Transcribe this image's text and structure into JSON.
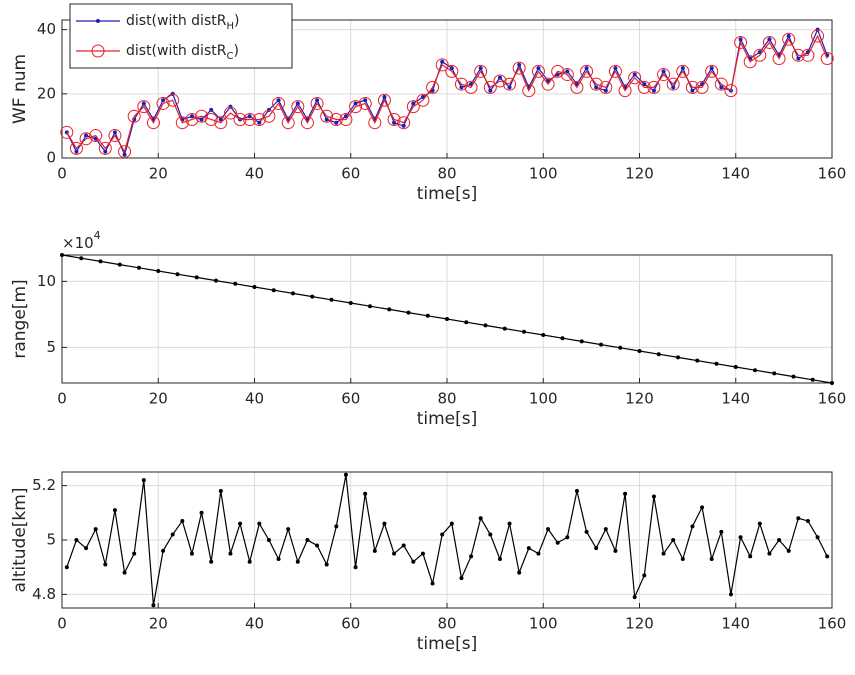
{
  "chart_data": [
    {
      "type": "line",
      "ylabel": "WF num",
      "xlabel": "time[s]",
      "xlim": [
        0,
        160
      ],
      "xticks": [
        0,
        20,
        40,
        60,
        80,
        100,
        120,
        140,
        160
      ],
      "ylim": [
        0,
        43
      ],
      "yticks": [
        0,
        20,
        40
      ],
      "grid": true,
      "legend": "upper left",
      "x": [
        1,
        3,
        5,
        7,
        9,
        11,
        13,
        15,
        17,
        19,
        21,
        23,
        25,
        27,
        29,
        31,
        33,
        35,
        37,
        39,
        41,
        43,
        45,
        47,
        49,
        51,
        53,
        55,
        57,
        59,
        61,
        63,
        65,
        67,
        69,
        71,
        73,
        75,
        77,
        79,
        81,
        83,
        85,
        87,
        89,
        91,
        93,
        95,
        97,
        99,
        101,
        103,
        105,
        107,
        109,
        111,
        113,
        115,
        117,
        119,
        121,
        123,
        125,
        127,
        129,
        131,
        133,
        135,
        137,
        139,
        141,
        143,
        145,
        147,
        149,
        151,
        153,
        155,
        157,
        159
      ],
      "series": [
        {
          "name": "dist(with distR",
          "name_sub": "H",
          "name_end": ")",
          "color": "#1f1fb4",
          "marker": "dot",
          "values": [
            8,
            2,
            7,
            6,
            2,
            8,
            1,
            12,
            17,
            12,
            18,
            20,
            12,
            13,
            12,
            15,
            12,
            16,
            12,
            13,
            11,
            15,
            18,
            12,
            17,
            12,
            18,
            12,
            11,
            13,
            17,
            18,
            12,
            19,
            11,
            10,
            17,
            19,
            21,
            30,
            28,
            22,
            23,
            28,
            21,
            25,
            22,
            29,
            22,
            28,
            24,
            26,
            27,
            23,
            28,
            22,
            21,
            28,
            22,
            26,
            23,
            21,
            27,
            22,
            28,
            21,
            23,
            28,
            22,
            21,
            37,
            31,
            33,
            37,
            32,
            38,
            31,
            33,
            40,
            32
          ]
        },
        {
          "name": "dist(with distR",
          "name_sub": "C",
          "name_end": ")",
          "color": "#e8202a",
          "marker": "circle",
          "values": [
            8,
            3,
            6,
            7,
            3,
            7,
            2,
            13,
            16,
            11,
            17,
            18,
            11,
            12,
            13,
            12,
            11,
            14,
            12,
            12,
            12,
            13,
            17,
            11,
            16,
            11,
            17,
            13,
            12,
            12,
            16,
            17,
            11,
            18,
            12,
            11,
            16,
            18,
            22,
            29,
            27,
            23,
            22,
            27,
            22,
            24,
            23,
            28,
            21,
            27,
            23,
            27,
            26,
            22,
            27,
            23,
            22,
            27,
            21,
            25,
            22,
            22,
            26,
            23,
            27,
            22,
            22,
            27,
            23,
            21,
            36,
            30,
            32,
            36,
            31,
            37,
            32,
            32,
            38,
            31
          ]
        }
      ]
    },
    {
      "type": "line",
      "ylabel": "range[m]",
      "xlabel": "time[s]",
      "exponent_base": "×10",
      "exponent": "4",
      "xlim": [
        0,
        160
      ],
      "xticks": [
        0,
        20,
        40,
        60,
        80,
        100,
        120,
        140,
        160
      ],
      "ylim": [
        23000,
        120000
      ],
      "yticks": [
        {
          "value": 50000,
          "label": "5"
        },
        {
          "value": 100000,
          "label": "10"
        }
      ],
      "grid": true,
      "x": [
        0,
        4,
        8,
        12,
        16,
        20,
        24,
        28,
        32,
        36,
        40,
        44,
        48,
        52,
        56,
        60,
        64,
        68,
        72,
        76,
        80,
        84,
        88,
        92,
        96,
        100,
        104,
        108,
        112,
        116,
        120,
        124,
        128,
        132,
        136,
        140,
        144,
        148,
        152,
        156,
        160
      ],
      "series": [
        {
          "color": "#000000",
          "marker": "dot",
          "values": [
            120000,
            117575,
            115150,
            112725,
            110300,
            107875,
            105450,
            103025,
            100600,
            98175,
            95750,
            93325,
            90900,
            88475,
            86050,
            83625,
            81200,
            78775,
            76350,
            73925,
            71500,
            69075,
            66650,
            64225,
            61800,
            59375,
            56950,
            54525,
            52100,
            49675,
            47250,
            44825,
            42400,
            39975,
            37550,
            35125,
            32700,
            30275,
            27850,
            25425,
            23000
          ]
        }
      ]
    },
    {
      "type": "line",
      "ylabel": "altitude[km]",
      "xlabel": "time[s]",
      "xlim": [
        0,
        160
      ],
      "xticks": [
        0,
        20,
        40,
        60,
        80,
        100,
        120,
        140,
        160
      ],
      "ylim": [
        4.75,
        5.25
      ],
      "yticks": [
        4.8,
        5,
        5.2
      ],
      "grid": true,
      "x": [
        1,
        3,
        5,
        7,
        9,
        11,
        13,
        15,
        17,
        19,
        21,
        23,
        25,
        27,
        29,
        31,
        33,
        35,
        37,
        39,
        41,
        43,
        45,
        47,
        49,
        51,
        53,
        55,
        57,
        59,
        61,
        63,
        65,
        67,
        69,
        71,
        73,
        75,
        77,
        79,
        81,
        83,
        85,
        87,
        89,
        91,
        93,
        95,
        97,
        99,
        101,
        103,
        105,
        107,
        109,
        111,
        113,
        115,
        117,
        119,
        121,
        123,
        125,
        127,
        129,
        131,
        133,
        135,
        137,
        139,
        141,
        143,
        145,
        147,
        149,
        151,
        153,
        155,
        157,
        159
      ],
      "series": [
        {
          "color": "#000000",
          "marker": "dot",
          "values": [
            4.9,
            5.0,
            4.97,
            5.04,
            4.91,
            5.11,
            4.88,
            4.95,
            5.22,
            4.76,
            4.96,
            5.02,
            5.07,
            4.95,
            5.1,
            4.92,
            5.18,
            4.95,
            5.06,
            4.92,
            5.06,
            5.0,
            4.93,
            5.04,
            4.92,
            5.0,
            4.98,
            4.91,
            5.05,
            5.24,
            4.9,
            5.17,
            4.96,
            5.06,
            4.95,
            4.98,
            4.92,
            4.95,
            4.84,
            5.02,
            5.06,
            4.86,
            4.94,
            5.08,
            5.02,
            4.93,
            5.06,
            4.88,
            4.97,
            4.95,
            5.04,
            4.99,
            5.01,
            5.18,
            5.03,
            4.97,
            5.04,
            4.96,
            5.17,
            4.79,
            4.87,
            5.16,
            4.95,
            5.0,
            4.93,
            5.05,
            5.12,
            4.93,
            5.03,
            4.8,
            5.01,
            4.94,
            5.06,
            4.95,
            5.0,
            4.96,
            5.08,
            5.07,
            5.01,
            4.94
          ]
        }
      ]
    }
  ]
}
